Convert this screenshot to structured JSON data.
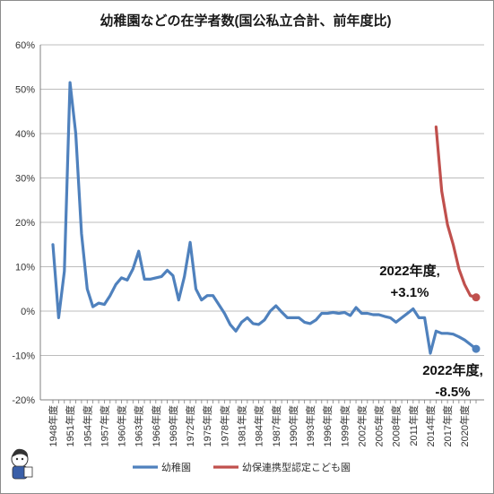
{
  "chart_data": {
    "type": "line",
    "title": "幼稚園などの在学者数(国公私立合計、前年度比)",
    "ylim": [
      -20,
      60
    ],
    "y_ticks": [
      "-20%",
      "-10%",
      "0%",
      "10%",
      "20%",
      "30%",
      "40%",
      "50%",
      "60%"
    ],
    "x_range": [
      1948,
      2022
    ],
    "x_tick_labels": [
      "1948年度",
      "1951年度",
      "1954年度",
      "1957年度",
      "1960年度",
      "1963年度",
      "1966年度",
      "1969年度",
      "1972年度",
      "1975年度",
      "1978年度",
      "1981年度",
      "1984年度",
      "1987年度",
      "1990年度",
      "1993年度",
      "1996年度",
      "1999年度",
      "2002年度",
      "2005年度",
      "2008年度",
      "2011年度",
      "2014年度",
      "2017年度",
      "2020年度"
    ],
    "grid": "horizontal",
    "legend_position": "bottom",
    "series": [
      {
        "name": "幼稚園",
        "color": "#4f81bd",
        "x": [
          1948,
          1949,
          1950,
          1951,
          1952,
          1953,
          1954,
          1955,
          1956,
          1957,
          1958,
          1959,
          1960,
          1961,
          1962,
          1963,
          1964,
          1965,
          1966,
          1967,
          1968,
          1969,
          1970,
          1971,
          1972,
          1973,
          1974,
          1975,
          1976,
          1977,
          1978,
          1979,
          1980,
          1981,
          1982,
          1983,
          1984,
          1985,
          1986,
          1987,
          1988,
          1989,
          1990,
          1991,
          1992,
          1993,
          1994,
          1995,
          1996,
          1997,
          1998,
          1999,
          2000,
          2001,
          2002,
          2003,
          2004,
          2005,
          2006,
          2007,
          2008,
          2009,
          2010,
          2011,
          2012,
          2013,
          2014,
          2015,
          2016,
          2017,
          2018,
          2019,
          2020,
          2021,
          2022
        ],
        "y": [
          15,
          -1.5,
          9,
          51.5,
          40,
          17.5,
          5,
          1,
          1.8,
          1.5,
          3.5,
          6,
          7.5,
          7,
          9.5,
          13.5,
          7.2,
          7.2,
          7.5,
          7.8,
          9.2,
          8,
          2.5,
          7.8,
          15.5,
          5,
          2.5,
          3.5,
          3.5,
          1.5,
          -0.5,
          -3,
          -4.5,
          -2.5,
          -1.5,
          -2.8,
          -3,
          -2,
          0,
          1.2,
          -0.2,
          -1.5,
          -1.5,
          -1.5,
          -2.5,
          -2.8,
          -2,
          -0.5,
          -0.5,
          -0.3,
          -0.5,
          -0.3,
          -1,
          0.8,
          -0.5,
          -0.5,
          -0.8,
          -0.8,
          -1.2,
          -1.5,
          -2.5,
          -1.5,
          -0.5,
          0.5,
          -1.5,
          -1.5,
          -9.5,
          -4.5,
          -5,
          -5,
          -5.2,
          -5.8,
          -6.5,
          -7.5,
          -8.5
        ]
      },
      {
        "name": "幼保連携型認定こども園",
        "color": "#c0504d",
        "x": [
          2015,
          2016,
          2017,
          2018,
          2019,
          2020,
          2021,
          2022
        ],
        "y": [
          41.5,
          27,
          19.5,
          15,
          9.5,
          6,
          3.5,
          3.1
        ]
      }
    ],
    "annotations": [
      {
        "line1": "2022年度,",
        "line2": "+3.1%",
        "series": 1
      },
      {
        "line1": "2022年度,",
        "line2": "-8.5%",
        "series": 0
      }
    ]
  }
}
